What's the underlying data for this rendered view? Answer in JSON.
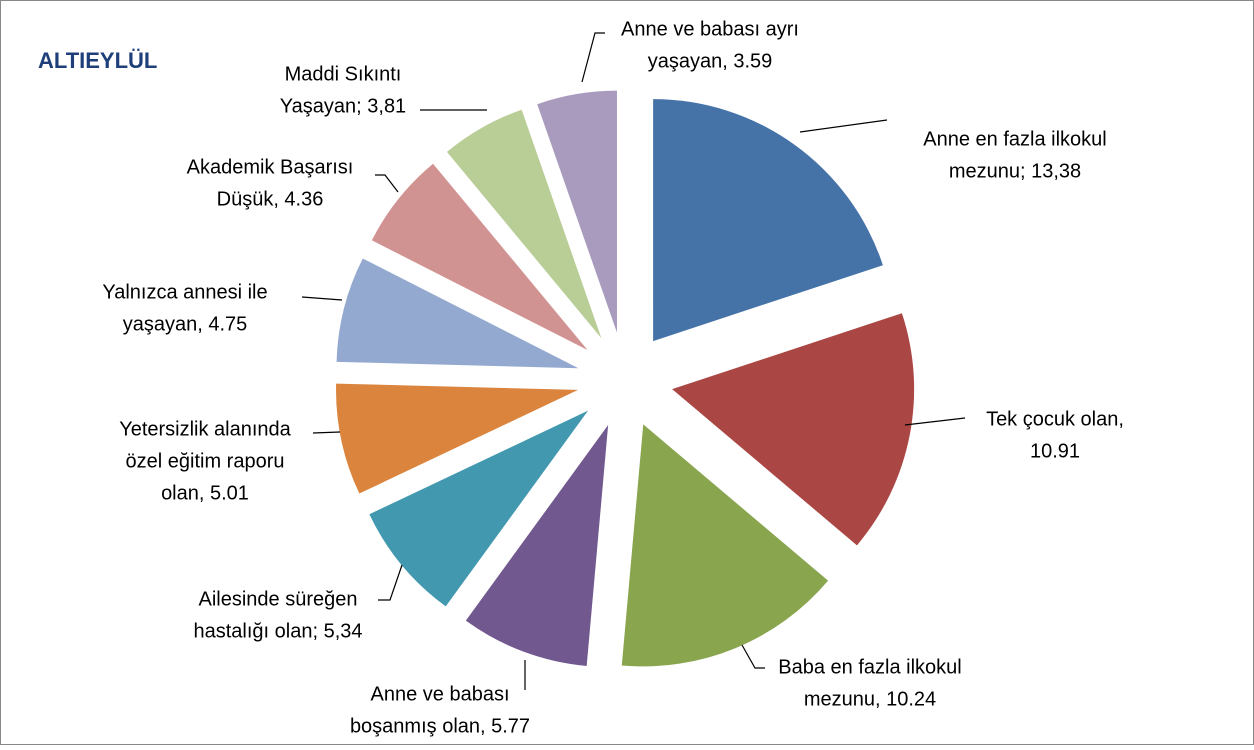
{
  "chart_data": {
    "type": "pie",
    "title": "ALTIEYLÜL",
    "values": [
      13.38,
      10.91,
      10.24,
      5.77,
      5.34,
      5.01,
      4.75,
      4.36,
      3.81,
      3.59
    ],
    "value_labels": [
      [
        "Anne en fazla ilkokul",
        "mezunu; 13,38"
      ],
      [
        "Tek çocuk olan,",
        "10.91"
      ],
      [
        "Baba en fazla ilkokul",
        "mezunu, 10.24"
      ],
      [
        "Anne ve babası",
        "boşanmış olan, 5.77"
      ],
      [
        "Ailesinde süreğen",
        "hastalığı olan; 5,34"
      ],
      [
        "Yetersizlik alanında",
        "özel eğitim raporu",
        "olan, 5.01"
      ],
      [
        "Yalnızca annesi ile",
        "yaşayan, 4.75"
      ],
      [
        "Akademik Başarısı",
        "Düşük, 4.36"
      ],
      [
        "Maddi Sıkıntı",
        "Yaşayan; 3,81"
      ],
      [
        "Anne ve babası ayrı",
        "yaşayan, 3.59"
      ]
    ],
    "colors": [
      "#4572a7",
      "#aa4643",
      "#89a54e",
      "#71588f",
      "#4198af",
      "#db843d",
      "#93a9cf",
      "#d19392",
      "#b9cd96",
      "#a99bbd"
    ]
  }
}
